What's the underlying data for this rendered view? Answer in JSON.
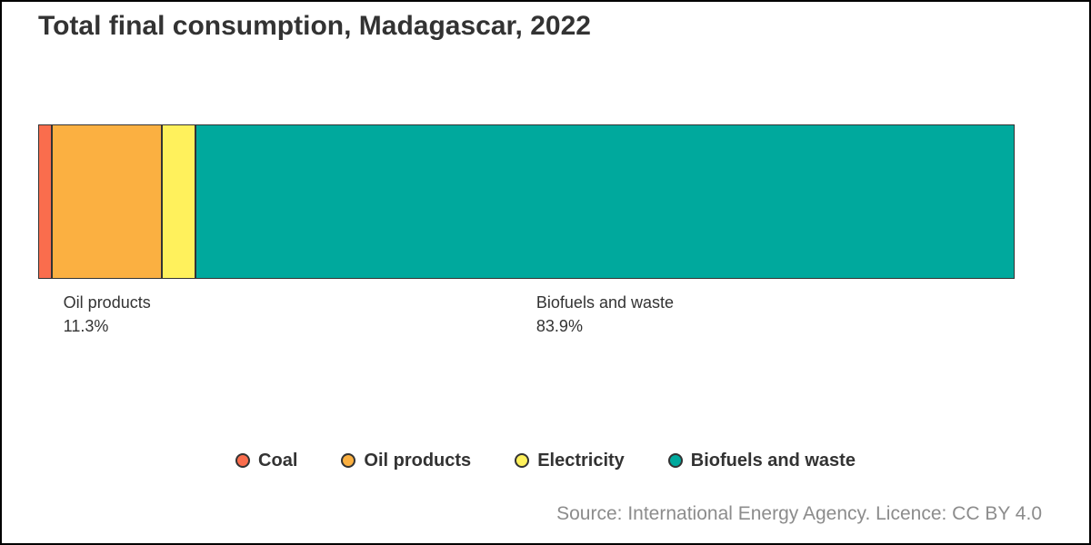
{
  "title": "Total final consumption, Madagascar, 2022",
  "source": "Source: International Energy Agency. Licence: CC BY 4.0",
  "colors": {
    "coal": "#fa6d4d",
    "oil_products": "#fbb041",
    "electricity": "#fff15c",
    "biofuels_and_waste": "#00a99d",
    "segment_border": "#333333",
    "text": "#333333",
    "source_text": "#8c8c8c",
    "frame_border": "#000000"
  },
  "chart_data": {
    "type": "bar",
    "variant": "horizontal-stacked-100-percent",
    "title": "Total final consumption, Madagascar, 2022",
    "categories": [
      "Coal",
      "Oil products",
      "Electricity",
      "Biofuels and waste"
    ],
    "values": [
      1.4,
      11.3,
      3.4,
      83.9
    ],
    "unit": "%",
    "colors": [
      "#fa6d4d",
      "#fbb041",
      "#fff15c",
      "#00a99d"
    ],
    "value_labels": [
      {
        "index": 1,
        "name": "Oil products",
        "value_label": "11.3%"
      },
      {
        "index": 3,
        "name": "Biofuels and waste",
        "value_label": "83.9%"
      }
    ],
    "xlabel": "",
    "ylabel": "",
    "axes_hidden": true,
    "grid": false,
    "legend_position": "bottom"
  },
  "legend": {
    "items": [
      {
        "label": "Coal",
        "color": "#fa6d4d"
      },
      {
        "label": "Oil products",
        "color": "#fbb041"
      },
      {
        "label": "Electricity",
        "color": "#fff15c"
      },
      {
        "label": "Biofuels and waste",
        "color": "#00a99d"
      }
    ]
  }
}
